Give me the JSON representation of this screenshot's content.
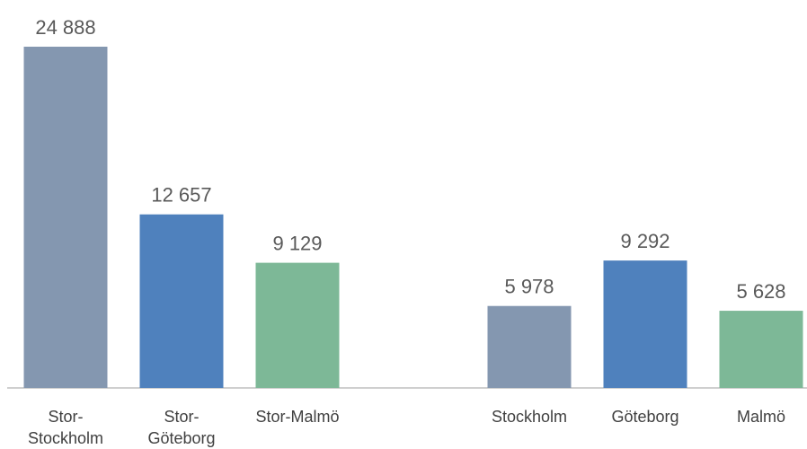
{
  "chart_data": {
    "type": "bar",
    "categories": [
      "Stor-Stockholm",
      "Stor-Göteborg",
      "Stor-Malmö",
      null,
      "Stockholm",
      "Göteborg",
      "Malmö"
    ],
    "values": [
      24888,
      12657,
      9129,
      null,
      5978,
      9292,
      5628
    ],
    "value_labels": [
      "24 888",
      "12 657",
      "9 129",
      null,
      "5 978",
      "9 292",
      "5 628"
    ],
    "colors": [
      "#8497b0",
      "#4f81bd",
      "#7db897",
      null,
      "#8497b0",
      "#4f81bd",
      "#7db897"
    ]
  }
}
